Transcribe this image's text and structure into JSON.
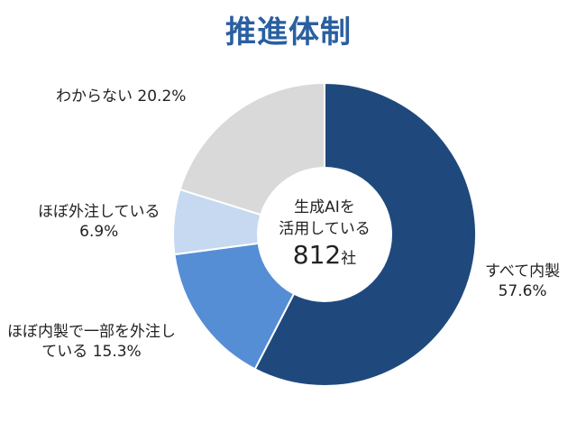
{
  "colors": {
    "title": "#2a5fa0"
  },
  "chart_data": {
    "type": "pie",
    "title": "推進体制",
    "center_label": {
      "line1": "生成AIを",
      "line2": "活用している",
      "count": "812",
      "unit": "社"
    },
    "slices": [
      {
        "label": "すべて内製",
        "value": 57.6,
        "value_text": "57.6%",
        "color": "#1f497d"
      },
      {
        "label": "ほぼ内製で一部を外注し",
        "label2": "ている",
        "value": 15.3,
        "value_text": "15.3%",
        "color": "#558ed5"
      },
      {
        "label": "ほぼ外注している",
        "value": 6.9,
        "value_text": "6.9%",
        "color": "#c6d9f1"
      },
      {
        "label": "わからない",
        "value": 20.2,
        "value_text": "20.2%",
        "color": "#d9d9d9"
      }
    ]
  }
}
